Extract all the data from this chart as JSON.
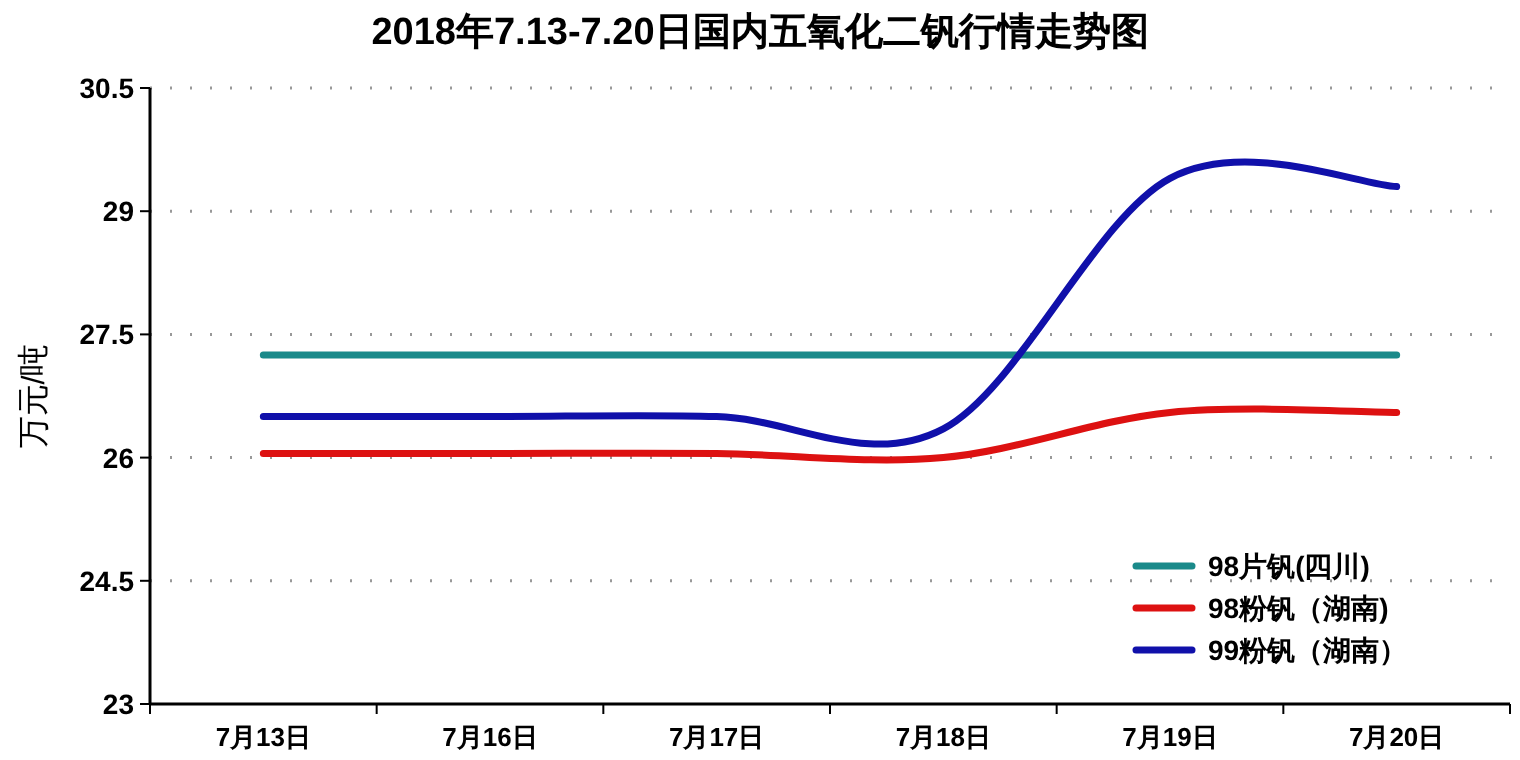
{
  "chart_data": {
    "type": "line",
    "title": "2018年7.13-7.20日国内五氧化二钒行情走势图",
    "ylabel": "万元/吨",
    "categories": [
      "7月13日",
      "7月16日",
      "7月17日",
      "7月18日",
      "7月19日",
      "7月20日"
    ],
    "series": [
      {
        "name": "98片钒(四川)",
        "color": "#1a8a8a",
        "values": [
          27.25,
          27.25,
          27.25,
          27.25,
          27.25,
          27.25
        ]
      },
      {
        "name": "98粉钒（湖南)",
        "color": "#dd1111",
        "values": [
          26.05,
          26.05,
          26.05,
          26.0,
          26.55,
          26.55
        ]
      },
      {
        "name": "99粉钒（湖南）",
        "color": "#1010aa",
        "values": [
          26.5,
          26.5,
          26.5,
          26.35,
          29.4,
          29.3
        ]
      }
    ],
    "ylim": [
      23,
      30.5
    ],
    "yticks": [
      23,
      24.5,
      26,
      27.5,
      29,
      30.5
    ],
    "grid": "y",
    "legend": "bottom right",
    "marker": "none",
    "line_style": "solid"
  }
}
